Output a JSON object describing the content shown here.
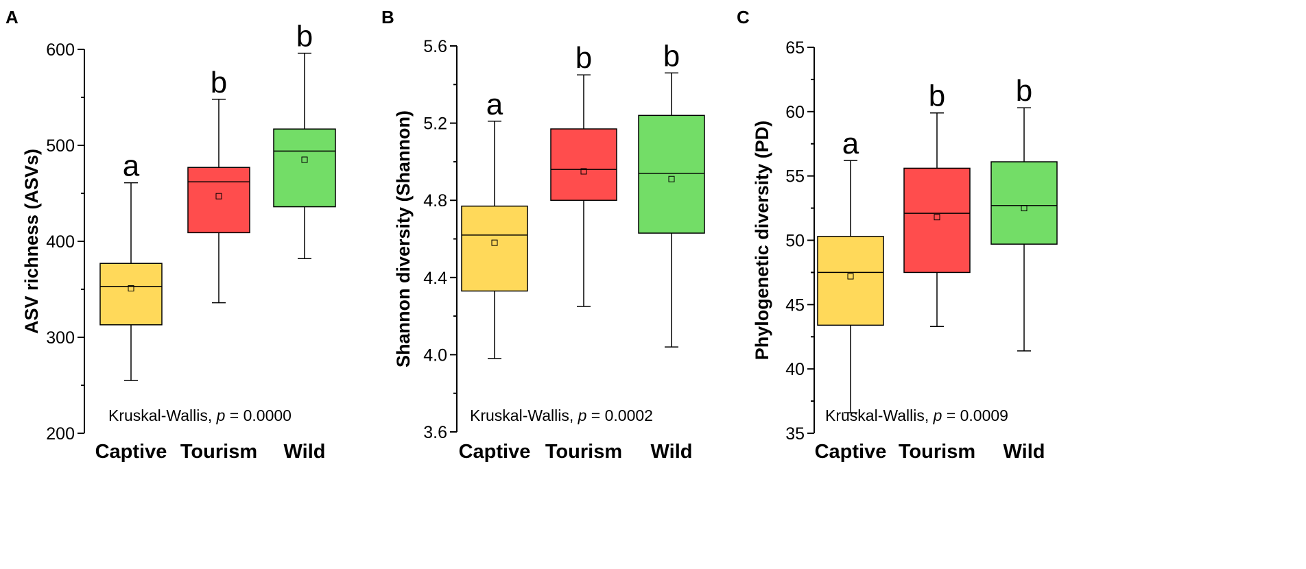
{
  "chart_data": [
    {
      "type": "box",
      "panel_label": "A",
      "title": "",
      "xlabel": "",
      "ylabel": "ASV richness (ASVs)",
      "ylim": [
        200,
        600
      ],
      "yticks": [
        "200",
        "300",
        "400",
        "500",
        "600"
      ],
      "categories": [
        "Captive",
        "Tourism",
        "Wild"
      ],
      "series": [
        {
          "name": "Captive",
          "color": "#FFD95A",
          "min": 255,
          "q1": 313,
          "median": 353,
          "q3": 377,
          "max": 461,
          "mean": 351,
          "letter": "a"
        },
        {
          "name": "Tourism",
          "color": "#FF4D4D",
          "min": 336,
          "q1": 409,
          "median": 462,
          "q3": 477,
          "max": 548,
          "mean": 447,
          "letter": "b"
        },
        {
          "name": "Wild",
          "color": "#73DD67",
          "min": 382,
          "q1": 436,
          "median": 494,
          "q3": 517,
          "max": 596,
          "mean": 485,
          "letter": "b"
        }
      ],
      "annotation": {
        "prefix": "Kruskal-Wallis, ",
        "p_symbol": "p",
        "suffix": " = 0.0000"
      }
    },
    {
      "type": "box",
      "panel_label": "B",
      "title": "",
      "xlabel": "",
      "ylabel": "Shannon diversity (Shannon)",
      "ylim": [
        3.6,
        5.6
      ],
      "yticks": [
        "3.6",
        "4.0",
        "4.4",
        "4.8",
        "5.2",
        "5.6"
      ],
      "categories": [
        "Captive",
        "Tourism",
        "Wild"
      ],
      "series": [
        {
          "name": "Captive",
          "color": "#FFD95A",
          "min": 3.98,
          "q1": 4.33,
          "median": 4.62,
          "q3": 4.77,
          "max": 5.21,
          "mean": 4.58,
          "letter": "a"
        },
        {
          "name": "Tourism",
          "color": "#FF4D4D",
          "min": 4.25,
          "q1": 4.8,
          "median": 4.96,
          "q3": 5.17,
          "max": 5.45,
          "mean": 4.95,
          "letter": "b"
        },
        {
          "name": "Wild",
          "color": "#73DD67",
          "min": 4.04,
          "q1": 4.63,
          "median": 4.94,
          "q3": 5.24,
          "max": 5.46,
          "mean": 4.91,
          "letter": "b"
        }
      ],
      "annotation": {
        "prefix": "Kruskal-Wallis, ",
        "p_symbol": "p",
        "suffix": " = 0.0002"
      }
    },
    {
      "type": "box",
      "panel_label": "C",
      "title": "",
      "xlabel": "",
      "ylabel": "Phylogenetic diversity (PD)",
      "ylim": [
        35,
        65
      ],
      "yticks": [
        "35",
        "40",
        "45",
        "50",
        "55",
        "60",
        "65"
      ],
      "categories": [
        "Captive",
        "Tourism",
        "Wild"
      ],
      "series": [
        {
          "name": "Captive",
          "color": "#FFD95A",
          "min": 36.6,
          "q1": 43.4,
          "median": 47.5,
          "q3": 50.3,
          "max": 56.2,
          "mean": 47.2,
          "letter": "a"
        },
        {
          "name": "Tourism",
          "color": "#FF4D4D",
          "min": 43.3,
          "q1": 47.5,
          "median": 52.1,
          "q3": 55.6,
          "max": 59.9,
          "mean": 51.8,
          "letter": "b"
        },
        {
          "name": "Wild",
          "color": "#73DD67",
          "min": 41.4,
          "q1": 49.7,
          "median": 52.7,
          "q3": 56.1,
          "max": 60.3,
          "mean": 52.5,
          "letter": "b"
        }
      ],
      "annotation": {
        "prefix": "Kruskal-Wallis, ",
        "p_symbol": "p",
        "suffix": " = 0.0009"
      }
    }
  ]
}
